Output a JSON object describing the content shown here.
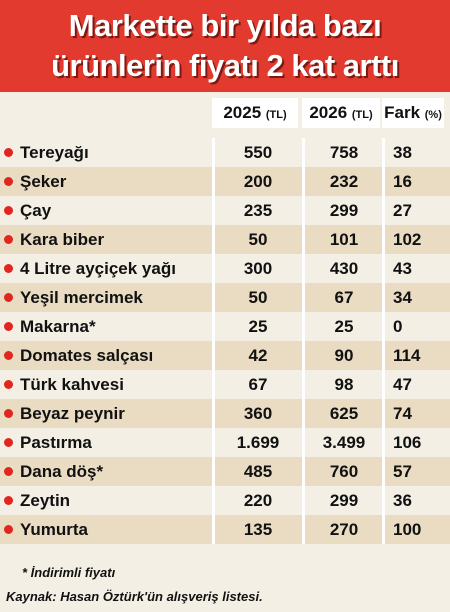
{
  "header": {
    "title": [
      "Markette bir yılda bazı",
      "ürünlerin fiyatı 2 kat arttı"
    ]
  },
  "table": {
    "columns": [
      {
        "label": "2025",
        "unit": "(TL)"
      },
      {
        "label": "2026",
        "unit": "(TL)"
      },
      {
        "label": "Fark",
        "unit": "(%)"
      }
    ],
    "rows": [
      [
        "Tereyağı",
        "550",
        "758",
        "38"
      ],
      [
        "Şeker",
        "200",
        "232",
        "16"
      ],
      [
        "Çay",
        "235",
        "299",
        "27"
      ],
      [
        "Kara biber",
        "50",
        "101",
        "102"
      ],
      [
        "4 Litre ayçiçek yağı",
        "300",
        "430",
        "43"
      ],
      [
        "Yeşil mercimek",
        "50",
        "67",
        "34"
      ],
      [
        "Makarna*",
        "25",
        "25",
        "0"
      ],
      [
        "Domates salçası",
        "42",
        "90",
        "114"
      ],
      [
        "Türk kahvesi",
        "67",
        "98",
        "47"
      ],
      [
        "Beyaz peynir",
        "360",
        "625",
        "74"
      ],
      [
        "Pastırma",
        "1.699",
        "3.499",
        "106"
      ],
      [
        "Dana döş*",
        "485",
        "760",
        "57"
      ],
      [
        "Zeytin",
        "220",
        "299",
        "36"
      ],
      [
        "Yumurta",
        "135",
        "270",
        "100"
      ]
    ]
  },
  "footer": {
    "note": "* İndirimli fiyatı",
    "source": "Kaynak: Hasan Öztürk'ün alışveriş listesi."
  }
}
